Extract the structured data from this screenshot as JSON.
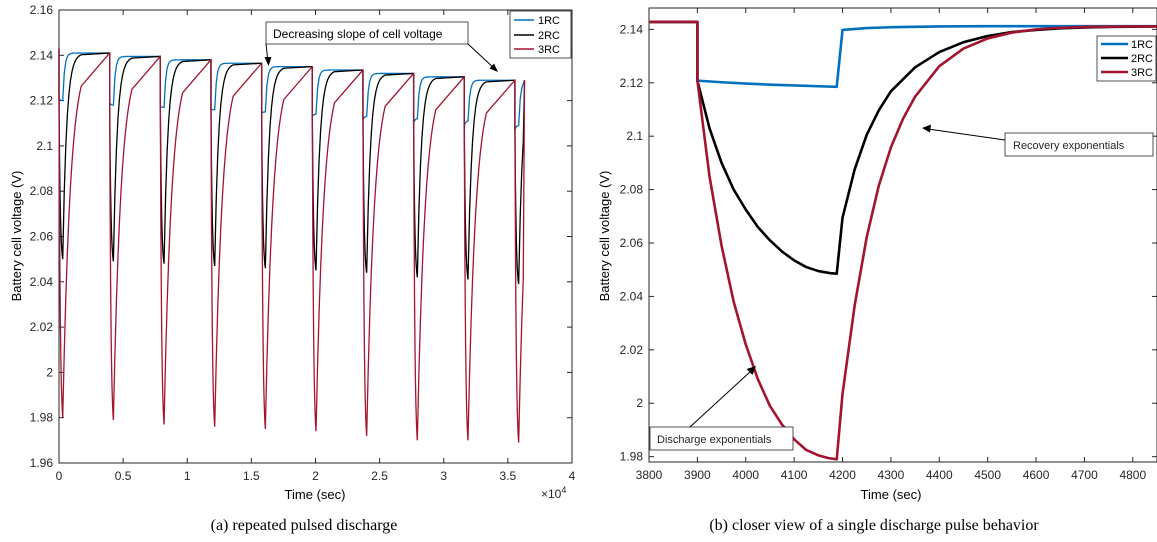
{
  "chart_data": [
    {
      "type": "line",
      "caption": "(a) repeated pulsed discharge",
      "xlabel": "Time (sec)",
      "ylabel": "Battery cell voltage (V)",
      "xlim": [
        0,
        40000
      ],
      "ylim": [
        1.96,
        2.16
      ],
      "x_ticks": [
        "0",
        "0.5",
        "1",
        "1.5",
        "2",
        "2.5",
        "3",
        "3.5",
        "4"
      ],
      "x_exponent": "×10",
      "x_exponent_power": "4",
      "y_ticks": [
        "1.96",
        "1.98",
        "2",
        "2.02",
        "2.04",
        "2.06",
        "2.08",
        "2.1",
        "2.12",
        "2.14",
        "2.16"
      ],
      "legend": {
        "position": "top-right",
        "entries": [
          "1RC",
          "2RC",
          "3RC"
        ]
      },
      "annotation": "Decreasing slope of cell voltage",
      "pulse_period_sec": 3950,
      "pulse_starts_sec": [
        0,
        3950,
        7900,
        11850,
        15800,
        19750,
        23700,
        27650,
        31600,
        35550
      ],
      "plateau_levels_V": [
        2.143,
        2.141,
        2.1395,
        2.138,
        2.1365,
        2.135,
        2.1335,
        2.132,
        2.1305,
        2.129
      ],
      "series": [
        {
          "name": "1RC",
          "color": "#0072BD",
          "pulse_minima_V": [
            2.12,
            2.118,
            2.117,
            2.116,
            2.115,
            2.114,
            2.113,
            2.112,
            2.111,
            2.109
          ]
        },
        {
          "name": "2RC",
          "color": "#000000",
          "pulse_minima_V": [
            2.05,
            2.049,
            2.048,
            2.047,
            2.046,
            2.045,
            2.044,
            2.042,
            2.041,
            2.039
          ]
        },
        {
          "name": "3RC",
          "color": "#A2142F",
          "pulse_minima_V": [
            1.98,
            1.979,
            1.977,
            1.976,
            1.975,
            1.974,
            1.972,
            1.97,
            1.97,
            1.969
          ]
        }
      ]
    },
    {
      "type": "line",
      "caption": "(b) closer view of a single discharge pulse behavior",
      "xlabel": "Time (sec)",
      "ylabel": "Battery cell voltage (V)",
      "xlim": [
        3800,
        4850
      ],
      "ylim": [
        1.978,
        2.148
      ],
      "x_ticks": [
        "3800",
        "3900",
        "4000",
        "4100",
        "4200",
        "4300",
        "4400",
        "4500",
        "4600",
        "4700",
        "4800"
      ],
      "y_ticks": [
        "1.98",
        "2",
        "2.02",
        "2.04",
        "2.06",
        "2.08",
        "2.1",
        "2.12",
        "2.14"
      ],
      "legend": {
        "position": "top-right",
        "entries": [
          "1RC",
          "2RC",
          "3RC"
        ]
      },
      "annotations": [
        "Recovery exponentials",
        "Discharge exponentials"
      ],
      "series": [
        {
          "name": "1RC",
          "color": "#0072BD",
          "x": [
            3800,
            3900,
            3900,
            3950,
            4000,
            4050,
            4100,
            4150,
            4188,
            4200,
            4250,
            4300,
            4400,
            4500,
            4600,
            4700,
            4850
          ],
          "y": [
            2.1428,
            2.1428,
            2.1208,
            2.1202,
            2.1197,
            2.1193,
            2.119,
            2.1187,
            2.1185,
            2.1398,
            2.1405,
            2.1408,
            2.1411,
            2.1412,
            2.1412,
            2.1412,
            2.1412
          ]
        },
        {
          "name": "2RC",
          "color": "#000000",
          "x": [
            3800,
            3900,
            3900,
            3925,
            3950,
            3975,
            4000,
            4025,
            4050,
            4075,
            4100,
            4125,
            4150,
            4175,
            4188,
            4200,
            4225,
            4250,
            4275,
            4300,
            4350,
            4400,
            4450,
            4500,
            4550,
            4600,
            4650,
            4700,
            4750,
            4800,
            4850
          ],
          "y": [
            2.1428,
            2.1428,
            2.1208,
            2.103,
            2.09,
            2.08,
            2.0725,
            2.066,
            2.061,
            2.0568,
            2.0535,
            2.051,
            2.0495,
            2.0487,
            2.0485,
            2.0695,
            2.0875,
            2.1005,
            2.1097,
            2.1168,
            2.1258,
            2.1315,
            2.1352,
            2.1375,
            2.139,
            2.1398,
            2.1404,
            2.1407,
            2.1409,
            2.141,
            2.1411
          ]
        },
        {
          "name": "3RC",
          "color": "#A2142F",
          "x": [
            3800,
            3900,
            3900,
            3925,
            3950,
            3975,
            4000,
            4025,
            4050,
            4075,
            4100,
            4125,
            4150,
            4170,
            4188,
            4200,
            4225,
            4250,
            4275,
            4300,
            4325,
            4350,
            4400,
            4450,
            4500,
            4550,
            4600,
            4650,
            4700,
            4750,
            4800,
            4850
          ],
          "y": [
            2.1428,
            2.1428,
            2.1208,
            2.085,
            2.059,
            2.038,
            2.022,
            2.009,
            1.999,
            1.992,
            1.9865,
            1.9825,
            1.9805,
            1.9795,
            1.979,
            2.0035,
            2.0365,
            2.0622,
            2.0815,
            2.0958,
            2.1065,
            2.1148,
            2.1262,
            2.1328,
            2.1366,
            2.1388,
            2.14,
            2.1406,
            2.1409,
            2.141,
            2.1411,
            2.1411
          ]
        }
      ]
    }
  ]
}
